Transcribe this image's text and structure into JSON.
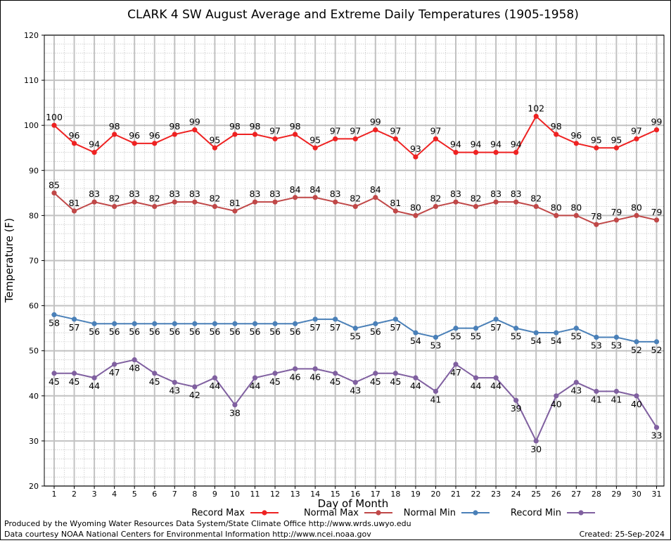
{
  "chart_data": {
    "type": "line",
    "title": "CLARK 4 SW August Average and Extreme Daily Temperatures (1905-1958)",
    "xlabel": "Day of Month",
    "ylabel": "Temperature (F)",
    "ylim": [
      20,
      120
    ],
    "xlim": [
      1,
      31
    ],
    "yticks": [
      20,
      30,
      40,
      50,
      60,
      70,
      80,
      90,
      100,
      110,
      120
    ],
    "x": [
      1,
      2,
      3,
      4,
      5,
      6,
      7,
      8,
      9,
      10,
      11,
      12,
      13,
      14,
      15,
      16,
      17,
      18,
      19,
      20,
      21,
      22,
      23,
      24,
      25,
      26,
      27,
      28,
      29,
      30,
      31
    ],
    "grid": true,
    "legend_placement": "bottom",
    "series": [
      {
        "name": "Record Max",
        "color": "#ee2222",
        "label_position": "above",
        "values": [
          100,
          96,
          94,
          98,
          96,
          96,
          98,
          99,
          95,
          98,
          98,
          97,
          98,
          95,
          97,
          97,
          99,
          97,
          93,
          97,
          94,
          94,
          94,
          94,
          102,
          98,
          96,
          95,
          95,
          97,
          99
        ]
      },
      {
        "name": "Normal Max",
        "color": "#c04848",
        "label_position": "above",
        "values": [
          85,
          81,
          83,
          82,
          83,
          82,
          83,
          83,
          82,
          81,
          83,
          83,
          84,
          84,
          83,
          82,
          84,
          81,
          80,
          82,
          83,
          82,
          83,
          83,
          82,
          80,
          80,
          78,
          79,
          80,
          79
        ]
      },
      {
        "name": "Normal Min",
        "color": "#4a80b8",
        "label_position": "below",
        "values": [
          58,
          57,
          56,
          56,
          56,
          56,
          56,
          56,
          56,
          56,
          56,
          56,
          56,
          57,
          57,
          55,
          56,
          57,
          54,
          53,
          55,
          55,
          57,
          55,
          54,
          54,
          55,
          53,
          53,
          52,
          52
        ]
      },
      {
        "name": "Record Min",
        "color": "#8060a0",
        "label_position": "below",
        "values": [
          45,
          45,
          44,
          47,
          48,
          45,
          43,
          42,
          44,
          38,
          44,
          45,
          46,
          46,
          45,
          43,
          45,
          45,
          44,
          41,
          47,
          44,
          44,
          39,
          30,
          40,
          43,
          41,
          41,
          40,
          33
        ]
      }
    ]
  },
  "footer": {
    "produced_by": "Produced by the Wyoming Water Resources Data System/State Climate Office http://www.wrds.uwyo.edu",
    "data_courtesy": "Data courtesy NOAA National Centers for Environmental Information http://www.ncei.noaa.gov",
    "created": "Created:  25-Sep-2024"
  }
}
